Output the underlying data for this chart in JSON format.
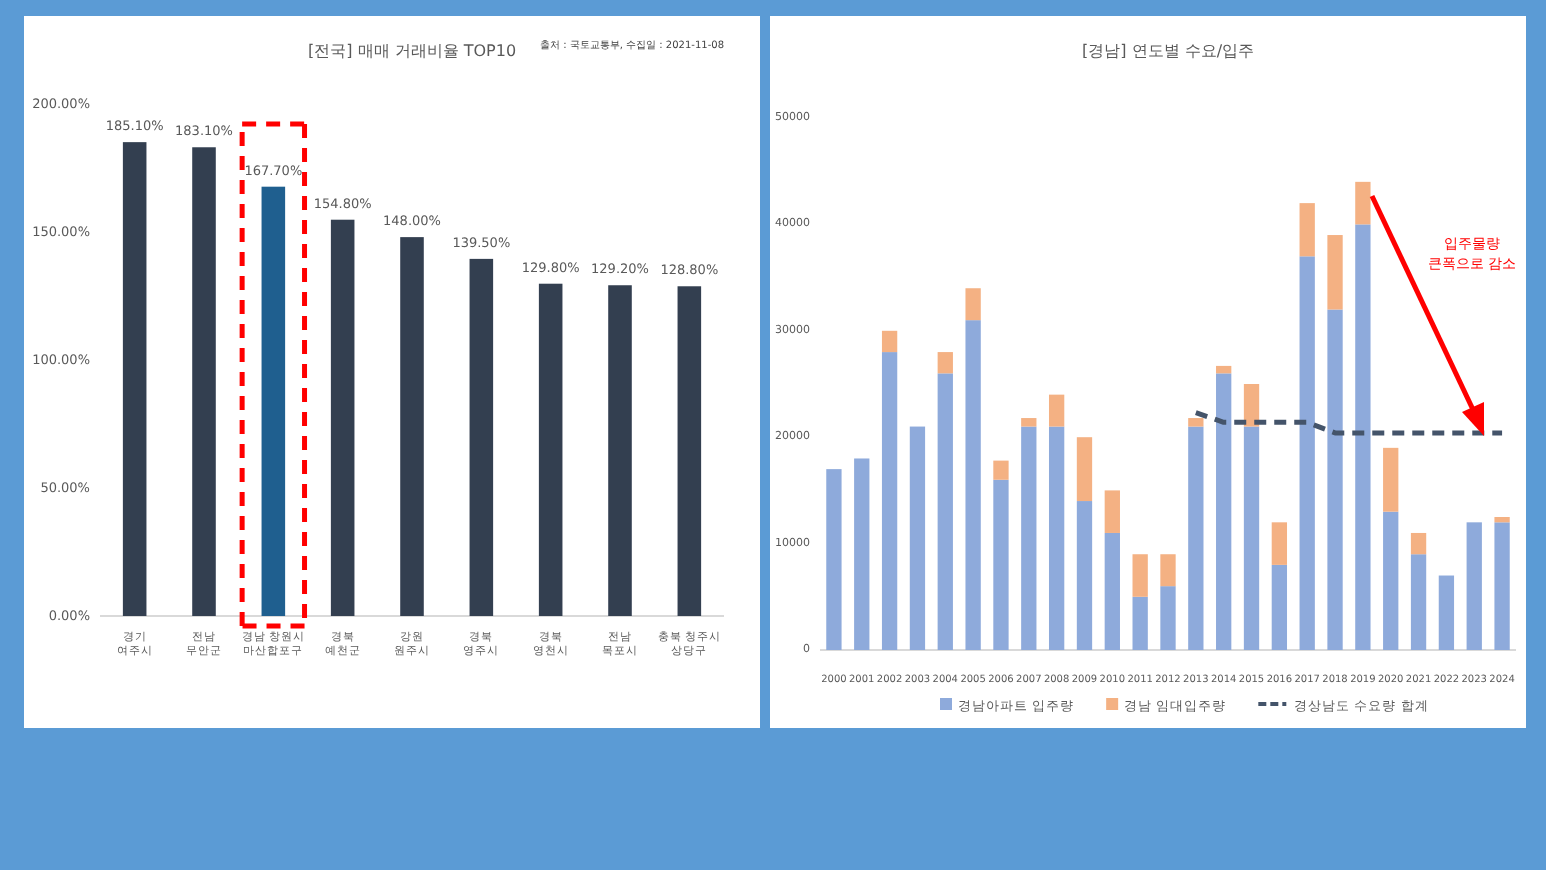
{
  "chart_data": [
    {
      "type": "bar",
      "title": "[전국] 매매 거래비율 TOP10",
      "annotations": [
        "출처 : 국토교통부, 수집일 : 2021-11-08"
      ],
      "categories": [
        "경기 여주시",
        "전남 무안군",
        "경남 창원시 마산합포구",
        "경북 예천군",
        "강원 원주시",
        "경북 영주시",
        "경북 영천시",
        "전남 목포시",
        "충북 청주시 상당구"
      ],
      "values": [
        185.1,
        183.1,
        167.7,
        154.8,
        148.0,
        139.5,
        129.8,
        129.2,
        128.8
      ],
      "colors": [
        "#333f50",
        "#333f50",
        "#1f5f8f",
        "#333f50",
        "#333f50",
        "#333f50",
        "#333f50",
        "#333f50",
        "#333f50"
      ],
      "value_labels": [
        "185.10%",
        "183.10%",
        "167.70%",
        "154.80%",
        "148.00%",
        "139.50%",
        "129.80%",
        "129.20%",
        "128.80%"
      ],
      "ylim": [
        0,
        200
      ],
      "yticks": [
        {
          "value": 0,
          "label": "0.00%"
        },
        {
          "value": 50,
          "label": "50.00%"
        },
        {
          "value": 100,
          "label": "100.00%"
        },
        {
          "value": 150,
          "label": "150.00%"
        },
        {
          "value": 200,
          "label": "200.00%"
        }
      ]
    },
    {
      "type": "bar",
      "stacked": true,
      "title": "[경남] 연도별 수요/입주",
      "annotations": [
        "입주물량 큰폭으로 감소"
      ],
      "legend": "bottom",
      "categories": [
        "2000",
        "2001",
        "2002",
        "2003",
        "2004",
        "2005",
        "2006",
        "2007",
        "2008",
        "2009",
        "2010",
        "2011",
        "2012",
        "2013",
        "2014",
        "2015",
        "2016",
        "2017",
        "2018",
        "2019",
        "2020",
        "2021",
        "2022",
        "2023",
        "2024"
      ],
      "series": [
        {
          "name": "경남아파트 입주량",
          "color": "#8eaadb",
          "values": [
            17000,
            18000,
            28000,
            21000,
            26000,
            31000,
            16000,
            21000,
            21000,
            14000,
            11000,
            5000,
            6000,
            21000,
            26000,
            21000,
            8000,
            37000,
            32000,
            40000,
            13000,
            9000,
            7000,
            12000,
            12000
          ]
        },
        {
          "name": "경남 임대입주량",
          "color": "#f4b183",
          "values": [
            0,
            0,
            2000,
            0,
            2000,
            3000,
            1800,
            800,
            3000,
            6000,
            4000,
            4000,
            3000,
            800,
            700,
            4000,
            4000,
            5000,
            7000,
            4000,
            6000,
            2000,
            0,
            0,
            500
          ]
        },
        {
          "name": "경상남도 수요량 합계",
          "type": "line",
          "line_style": "dashed",
          "color": "#44546a",
          "values": [
            null,
            null,
            null,
            null,
            null,
            null,
            null,
            null,
            null,
            null,
            null,
            null,
            null,
            22300,
            21400,
            21400,
            21400,
            21400,
            20400,
            20400,
            20400,
            20400,
            20400,
            20400,
            20400
          ]
        }
      ],
      "ylim": [
        0,
        50000
      ],
      "yticks": [
        0,
        10000,
        20000,
        30000,
        40000,
        50000
      ]
    }
  ]
}
